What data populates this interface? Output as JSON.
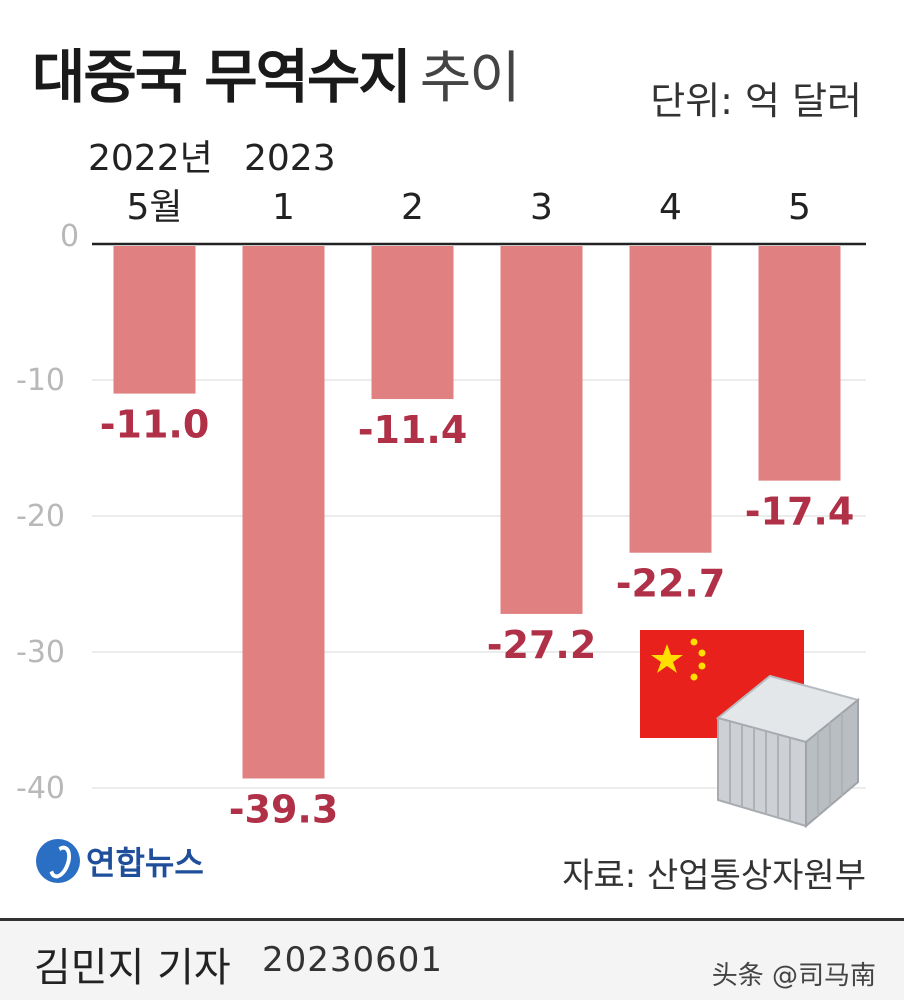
{
  "header": {
    "title_main": "대중국 무역수지",
    "title_sub": "추이",
    "unit": "단위: 억 달러"
  },
  "chart_data": {
    "type": "bar",
    "title": "대중국 무역수지 추이",
    "unit": "억 달러",
    "year_labels": [
      "2022년",
      "2023"
    ],
    "categories": [
      "5월",
      "1",
      "2",
      "3",
      "4",
      "5"
    ],
    "values": [
      -11.0,
      -39.3,
      -11.4,
      -27.2,
      -22.7,
      -17.4
    ],
    "value_labels": [
      "-11.0",
      "-39.3",
      "-11.4",
      "-27.2",
      "-22.7",
      "-17.4"
    ],
    "yticks": [
      0,
      -10,
      -20,
      -30,
      -40
    ],
    "ytick_labels": [
      "0",
      "-10",
      "-20",
      "-30",
      "-40"
    ],
    "ylim": [
      -40,
      0
    ],
    "grid": true,
    "bar_color": "#e08080",
    "label_color": "#b03048"
  },
  "decoration": {
    "flag": "china-flag-icon",
    "container": "shipping-container-icon",
    "flag_red": "#e8211c",
    "flag_star": "#ffde00"
  },
  "footer": {
    "logo_text": "연합뉴스",
    "source": "자료: 산업통상자원부",
    "byline": "김민지 기자",
    "date": "20230601",
    "watermark": "头条 @司马南"
  }
}
